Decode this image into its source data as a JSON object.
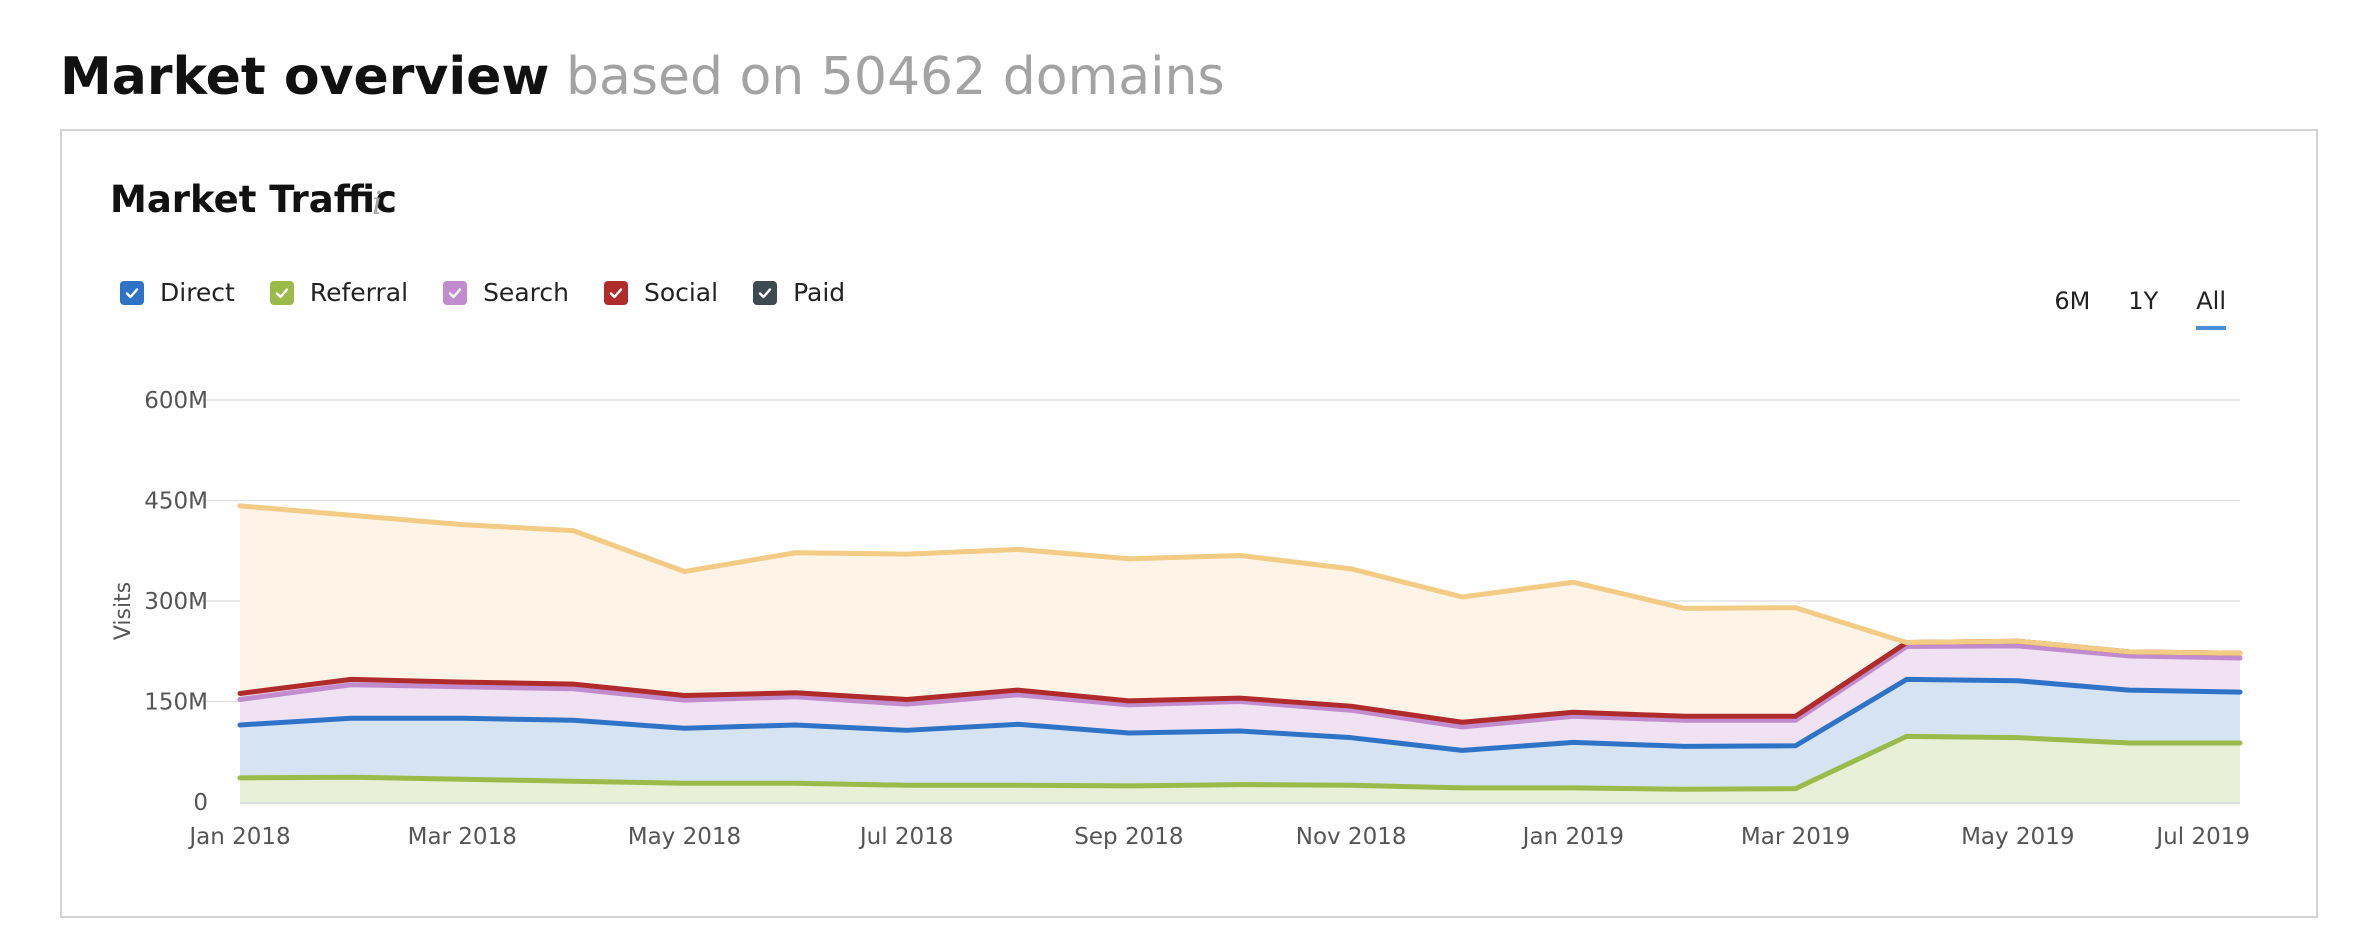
{
  "header": {
    "title": "Market overview",
    "subtitle": "based on 50462 domains"
  },
  "card": {
    "title": "Market Traffic",
    "info_glyph": "i"
  },
  "legend": [
    {
      "label": "Direct",
      "color": "#2f73c7",
      "checked": true
    },
    {
      "label": "Referral",
      "color": "#9aba4a",
      "checked": true
    },
    {
      "label": "Search",
      "color": "#c08ccd",
      "checked": true
    },
    {
      "label": "Social",
      "color": "#b02b2b",
      "checked": true
    },
    {
      "label": "Paid",
      "color": "#3e4a52",
      "checked": true
    }
  ],
  "ranges": [
    {
      "label": "6M",
      "active": false
    },
    {
      "label": "1Y",
      "active": false
    },
    {
      "label": "All",
      "active": true
    }
  ],
  "colors": {
    "total_line": "#f2cb85",
    "total_fill": "#fdf3e7",
    "grid": "#e2e2e2"
  },
  "chart_data": {
    "type": "area",
    "ylabel": "Visits",
    "ylim": [
      0,
      600000000
    ],
    "y_ticks": [
      0,
      150000000,
      300000000,
      450000000,
      600000000
    ],
    "y_tick_labels": [
      "0",
      "150M",
      "300M",
      "450M",
      "600M"
    ],
    "x": [
      "2018-01",
      "2018-02",
      "2018-03",
      "2018-04",
      "2018-05",
      "2018-06",
      "2018-07",
      "2018-08",
      "2018-09",
      "2018-10",
      "2018-11",
      "2018-12",
      "2019-01",
      "2019-02",
      "2019-03",
      "2019-04",
      "2019-05",
      "2019-06",
      "2019-07"
    ],
    "x_tick_labels": [
      {
        "x": "2018-01",
        "label": "Jan 2018"
      },
      {
        "x": "2018-03",
        "label": "Mar 2018"
      },
      {
        "x": "2018-05",
        "label": "May 2018"
      },
      {
        "x": "2018-07",
        "label": "Jul 2018"
      },
      {
        "x": "2018-09",
        "label": "Sep 2018"
      },
      {
        "x": "2018-11",
        "label": "Nov 2018"
      },
      {
        "x": "2019-01",
        "label": "Jan 2019"
      },
      {
        "x": "2019-03",
        "label": "Mar 2019"
      },
      {
        "x": "2019-05",
        "label": "May 2019"
      },
      {
        "x": "2019-07",
        "label": "Jul 2019"
      }
    ],
    "stacked": true,
    "stack_lines": [
      {
        "name": "Referral",
        "color": "#9aba4a",
        "fill": "#e8f0d8",
        "values": [
          36000000,
          37000000,
          34000000,
          31000000,
          28000000,
          28000000,
          25000000,
          25000000,
          24000000,
          26000000,
          25000000,
          21000000,
          21000000,
          19000000,
          20000000,
          98000000,
          96000000,
          88000000,
          88000000
        ]
      },
      {
        "name": "Direct",
        "color": "#2f73c7",
        "fill": "#d6e3f3",
        "values": [
          115000000,
          125000000,
          125000000,
          122000000,
          110000000,
          115000000,
          107000000,
          116000000,
          103000000,
          106000000,
          96000000,
          77000000,
          89000000,
          83000000,
          84000000,
          183000000,
          181000000,
          167000000,
          164000000
        ]
      },
      {
        "name": "Search",
        "color": "#c08ccd",
        "fill": "#f0e2f3",
        "values": [
          153000000,
          175000000,
          172000000,
          169000000,
          152000000,
          157000000,
          146000000,
          160000000,
          145000000,
          150000000,
          137000000,
          112000000,
          128000000,
          122000000,
          122000000,
          232000000,
          233000000,
          218000000,
          215000000
        ]
      },
      {
        "name": "Social",
        "color": "#b02b2b",
        "fill": "#f0e2f3",
        "values": [
          162000000,
          183000000,
          179000000,
          176000000,
          159000000,
          163000000,
          153000000,
          167000000,
          151000000,
          155000000,
          143000000,
          119000000,
          134000000,
          128000000,
          128000000,
          238000000,
          240000000,
          224000000,
          222000000
        ]
      },
      {
        "name": "Paid",
        "color": "#f2cb85",
        "fill": "#fdf3e7",
        "values": [
          442000000,
          428000000,
          414000000,
          405000000,
          344000000,
          372000000,
          370000000,
          377000000,
          363000000,
          368000000,
          348000000,
          306000000,
          328000000,
          289000000,
          290000000,
          238000000,
          240000000,
          224000000,
          222000000
        ]
      }
    ]
  }
}
